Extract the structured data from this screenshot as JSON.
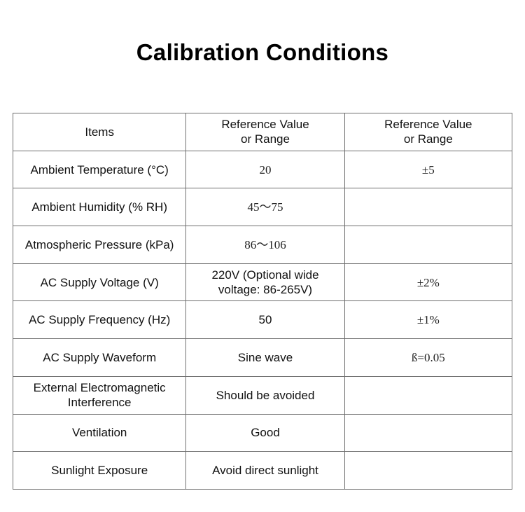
{
  "title": "Calibration Conditions",
  "table": {
    "headers": [
      "Items",
      "Reference Value\nor Range",
      "Reference Value\nor Range"
    ],
    "rows": [
      {
        "item": "Ambient Temperature (°C)",
        "reference": "20",
        "tolerance": "±5"
      },
      {
        "item": "Ambient Humidity (% RH)",
        "reference": "45～75",
        "tolerance": ""
      },
      {
        "item": "Atmospheric Pressure (kPa)",
        "reference": "86～106",
        "tolerance": ""
      },
      {
        "item": "AC Supply Voltage (V)",
        "reference": "220V (Optional wide voltage: 86-265V)",
        "tolerance": "±2%"
      },
      {
        "item": "AC Supply Frequency (Hz)",
        "reference": "50",
        "tolerance": "±1%"
      },
      {
        "item": "AC Supply Waveform",
        "reference": "Sine wave",
        "tolerance": "ß=0.05"
      },
      {
        "item": "External Electromagnetic Interference",
        "reference": "Should be avoided",
        "tolerance": ""
      },
      {
        "item": "Ventilation",
        "reference": "Good",
        "tolerance": ""
      },
      {
        "item": "Sunlight Exposure",
        "reference": "Avoid direct sunlight",
        "tolerance": ""
      }
    ]
  }
}
